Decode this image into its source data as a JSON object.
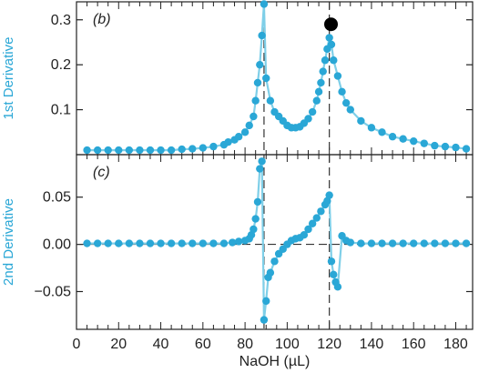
{
  "chart_data": [
    {
      "type": "scatter",
      "panel_label": "(b)",
      "ylabel": "1st Derivative",
      "xlabel": "",
      "xlim": [
        0,
        188
      ],
      "ylim": [
        0,
        0.34
      ],
      "yticks": [
        0.1,
        0.2,
        0.3
      ],
      "ytick_labels": [
        "0.1",
        "0.2",
        "0.3"
      ],
      "reference_lines": {
        "vertical_x": [
          89,
          120
        ]
      },
      "colors": {
        "points": "#2aa7d6",
        "line": "#7fcfe8",
        "highlight": "#000000"
      },
      "highlight_point": {
        "x": 120.8,
        "y": 0.29
      },
      "series": [
        {
          "x": [
            5,
            10,
            15,
            20,
            25,
            30,
            35,
            40,
            45,
            50,
            55,
            60,
            65,
            70,
            72,
            75,
            77,
            80,
            82,
            84,
            85,
            86,
            87,
            88,
            89,
            90,
            92,
            94,
            96,
            98,
            100,
            102,
            104,
            106,
            108,
            110,
            112,
            114,
            115,
            116,
            117,
            118,
            119,
            120,
            121,
            122,
            124,
            126,
            128,
            130,
            135,
            140,
            145,
            150,
            155,
            160,
            165,
            170,
            175,
            180,
            185
          ],
          "y": [
            0.01,
            0.01,
            0.01,
            0.01,
            0.01,
            0.01,
            0.01,
            0.01,
            0.01,
            0.012,
            0.013,
            0.015,
            0.018,
            0.022,
            0.028,
            0.033,
            0.04,
            0.05,
            0.065,
            0.085,
            0.12,
            0.16,
            0.2,
            0.265,
            0.335,
            0.17,
            0.12,
            0.095,
            0.085,
            0.075,
            0.065,
            0.06,
            0.06,
            0.062,
            0.07,
            0.08,
            0.095,
            0.12,
            0.14,
            0.16,
            0.185,
            0.21,
            0.235,
            0.26,
            0.245,
            0.21,
            0.175,
            0.14,
            0.115,
            0.1,
            0.075,
            0.06,
            0.05,
            0.04,
            0.035,
            0.03,
            0.025,
            0.02,
            0.018,
            0.016,
            0.013
          ]
        }
      ]
    },
    {
      "type": "scatter",
      "panel_label": "(c)",
      "ylabel": "2nd Derivative",
      "xlabel": "NaOH (µL)",
      "xlim": [
        0,
        188
      ],
      "ylim": [
        -0.09,
        0.095
      ],
      "xticks": [
        0,
        20,
        40,
        60,
        80,
        100,
        120,
        140,
        160,
        180
      ],
      "xtick_labels": [
        "0",
        "20",
        "40",
        "60",
        "80",
        "100",
        "120",
        "140",
        "160",
        "180"
      ],
      "yticks": [
        -0.05,
        0.0,
        0.05
      ],
      "ytick_labels": [
        "−0.05",
        "0.00",
        "0.05"
      ],
      "reference_lines": {
        "vertical_x": [
          89,
          120
        ],
        "horizontal_y": 0.0
      },
      "colors": {
        "points": "#2aa7d6",
        "line": "#7fcfe8"
      },
      "series": [
        {
          "x": [
            5,
            10,
            15,
            20,
            25,
            30,
            35,
            40,
            45,
            50,
            55,
            60,
            65,
            70,
            74,
            77,
            80,
            82,
            83,
            84,
            85,
            86,
            87,
            88,
            89,
            90,
            91,
            92,
            94,
            96,
            98,
            100,
            102,
            104,
            106,
            108,
            110,
            112,
            114,
            116,
            118,
            119,
            120,
            121,
            122,
            123,
            124,
            126,
            128,
            130,
            135,
            140,
            145,
            150,
            155,
            160,
            165,
            170,
            175,
            180,
            185
          ],
          "y": [
            0.001,
            0.001,
            0.001,
            0.001,
            0.001,
            0.001,
            0.001,
            0.001,
            0.001,
            0.001,
            0.001,
            0.001,
            0.001,
            0.001,
            0.002,
            0.003,
            0.004,
            0.006,
            0.01,
            0.016,
            0.027,
            0.045,
            0.08,
            0.088,
            -0.08,
            -0.06,
            -0.035,
            -0.03,
            -0.018,
            -0.01,
            -0.005,
            0.0,
            0.004,
            0.006,
            0.007,
            0.01,
            0.016,
            0.022,
            0.028,
            0.035,
            0.042,
            0.046,
            0.052,
            -0.018,
            -0.032,
            -0.04,
            -0.045,
            0.009,
            0.004,
            0.002,
            0.001,
            0.001,
            0.001,
            0.001,
            0.001,
            0.001,
            0.001,
            0.001,
            0.001,
            0.001,
            0.001
          ]
        }
      ]
    }
  ]
}
